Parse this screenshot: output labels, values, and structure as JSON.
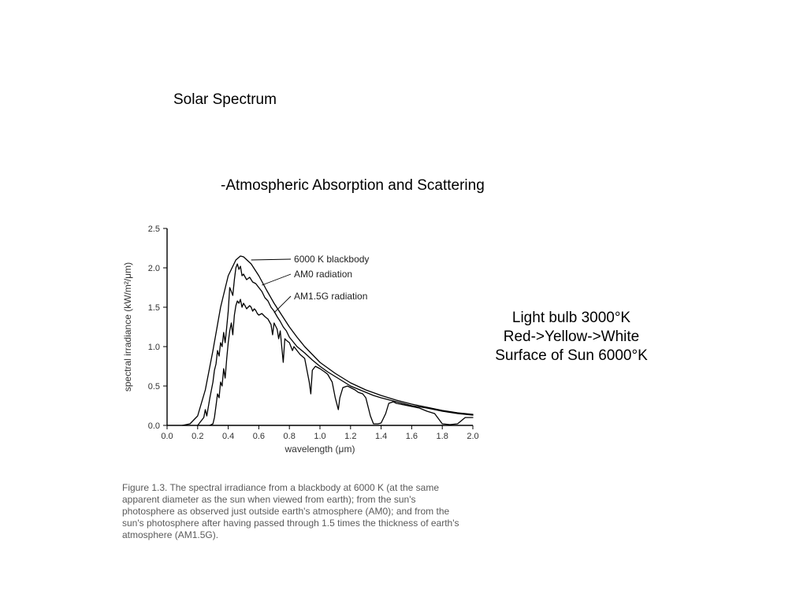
{
  "title": "Solar Spectrum",
  "subtitle": "-Atmospheric Absorption and Scattering",
  "side_note": {
    "line1": "Light bulb 3000°K",
    "line2": "Red->Yellow->White",
    "line3": "Surface of Sun 6000°K"
  },
  "caption": "Figure 1.3. The spectral irradiance from a blackbody at 6000 K (at the same apparent diameter as the sun when viewed from earth); from the sun's photosphere as observed just outside earth's atmosphere (AM0); and from the sun's photosphere after having passed through 1.5 times the thickness of earth's atmosphere (AM1.5G).",
  "chart": {
    "type": "line",
    "background_color": "#ffffff",
    "axis_color": "#000000",
    "line_color": "#000000",
    "line_width": 1.3,
    "xlim": [
      0.0,
      2.0
    ],
    "ylim": [
      0.0,
      2.5
    ],
    "xticks": [
      0.0,
      0.2,
      0.4,
      0.6,
      0.8,
      1.0,
      1.2,
      1.4,
      1.6,
      1.8,
      2.0
    ],
    "yticks": [
      0.0,
      0.5,
      1.0,
      1.5,
      2.0,
      2.5
    ],
    "xlabel": "wavelength (μm)",
    "ylabel": "spectral irradiance (kW/m²/μm)",
    "label_fontsize": 12,
    "tick_fontsize": 11,
    "series": [
      {
        "name": "6000 K blackbody",
        "label": "6000 K blackbody",
        "label_xy": [
          0.83,
          2.07
        ],
        "leader_from": [
          0.55,
          2.1
        ],
        "color": "#000000",
        "points": [
          [
            0.1,
            0.0
          ],
          [
            0.15,
            0.02
          ],
          [
            0.2,
            0.12
          ],
          [
            0.25,
            0.45
          ],
          [
            0.3,
            0.95
          ],
          [
            0.35,
            1.5
          ],
          [
            0.4,
            1.9
          ],
          [
            0.45,
            2.1
          ],
          [
            0.48,
            2.15
          ],
          [
            0.5,
            2.14
          ],
          [
            0.55,
            2.05
          ],
          [
            0.6,
            1.9
          ],
          [
            0.65,
            1.72
          ],
          [
            0.7,
            1.55
          ],
          [
            0.75,
            1.4
          ],
          [
            0.8,
            1.25
          ],
          [
            0.85,
            1.12
          ],
          [
            0.9,
            1.0
          ],
          [
            0.95,
            0.9
          ],
          [
            1.0,
            0.8
          ],
          [
            1.1,
            0.66
          ],
          [
            1.2,
            0.54
          ],
          [
            1.3,
            0.45
          ],
          [
            1.4,
            0.38
          ],
          [
            1.5,
            0.32
          ],
          [
            1.6,
            0.27
          ],
          [
            1.7,
            0.23
          ],
          [
            1.8,
            0.19
          ],
          [
            1.9,
            0.16
          ],
          [
            2.0,
            0.14
          ]
        ]
      },
      {
        "name": "AM0 radiation",
        "label": "AM0 radiation",
        "label_xy": [
          0.83,
          1.88
        ],
        "leader_from": [
          0.62,
          1.78
        ],
        "color": "#000000",
        "points": [
          [
            0.2,
            0.0
          ],
          [
            0.22,
            0.05
          ],
          [
            0.24,
            0.1
          ],
          [
            0.25,
            0.2
          ],
          [
            0.26,
            0.12
          ],
          [
            0.28,
            0.35
          ],
          [
            0.3,
            0.55
          ],
          [
            0.31,
            0.7
          ],
          [
            0.32,
            0.78
          ],
          [
            0.33,
            0.95
          ],
          [
            0.34,
            0.88
          ],
          [
            0.35,
            1.05
          ],
          [
            0.36,
            1.0
          ],
          [
            0.37,
            1.18
          ],
          [
            0.38,
            1.05
          ],
          [
            0.39,
            1.25
          ],
          [
            0.4,
            1.45
          ],
          [
            0.41,
            1.75
          ],
          [
            0.42,
            1.7
          ],
          [
            0.43,
            1.65
          ],
          [
            0.44,
            1.85
          ],
          [
            0.45,
            2.0
          ],
          [
            0.46,
            2.05
          ],
          [
            0.47,
            1.98
          ],
          [
            0.48,
            2.02
          ],
          [
            0.49,
            1.9
          ],
          [
            0.5,
            1.92
          ],
          [
            0.52,
            1.85
          ],
          [
            0.54,
            1.88
          ],
          [
            0.56,
            1.82
          ],
          [
            0.58,
            1.8
          ],
          [
            0.6,
            1.75
          ],
          [
            0.62,
            1.7
          ],
          [
            0.64,
            1.62
          ],
          [
            0.66,
            1.58
          ],
          [
            0.68,
            1.5
          ],
          [
            0.7,
            1.45
          ],
          [
            0.72,
            1.38
          ],
          [
            0.74,
            1.32
          ],
          [
            0.76,
            1.25
          ],
          [
            0.78,
            1.2
          ],
          [
            0.8,
            1.12
          ],
          [
            0.85,
            1.0
          ],
          [
            0.9,
            0.92
          ],
          [
            0.95,
            0.83
          ],
          [
            1.0,
            0.75
          ],
          [
            1.05,
            0.68
          ],
          [
            1.1,
            0.62
          ],
          [
            1.15,
            0.56
          ],
          [
            1.2,
            0.5
          ],
          [
            1.25,
            0.46
          ],
          [
            1.3,
            0.42
          ],
          [
            1.35,
            0.38
          ],
          [
            1.4,
            0.35
          ],
          [
            1.5,
            0.3
          ],
          [
            1.6,
            0.25
          ],
          [
            1.7,
            0.22
          ],
          [
            1.8,
            0.18
          ],
          [
            1.9,
            0.15
          ],
          [
            2.0,
            0.13
          ]
        ]
      },
      {
        "name": "AM1.5G radiation",
        "label": "AM1.5G radiation",
        "label_xy": [
          0.83,
          1.6
        ],
        "leader_from": [
          0.7,
          1.43
        ],
        "color": "#000000",
        "points": [
          [
            0.28,
            0.0
          ],
          [
            0.3,
            0.02
          ],
          [
            0.31,
            0.1
          ],
          [
            0.32,
            0.25
          ],
          [
            0.33,
            0.4
          ],
          [
            0.34,
            0.35
          ],
          [
            0.35,
            0.55
          ],
          [
            0.36,
            0.5
          ],
          [
            0.37,
            0.72
          ],
          [
            0.38,
            0.6
          ],
          [
            0.39,
            0.85
          ],
          [
            0.4,
            1.05
          ],
          [
            0.41,
            1.2
          ],
          [
            0.42,
            1.3
          ],
          [
            0.43,
            1.15
          ],
          [
            0.44,
            1.4
          ],
          [
            0.45,
            1.52
          ],
          [
            0.46,
            1.58
          ],
          [
            0.47,
            1.55
          ],
          [
            0.48,
            1.6
          ],
          [
            0.49,
            1.5
          ],
          [
            0.5,
            1.55
          ],
          [
            0.51,
            1.52
          ],
          [
            0.52,
            1.48
          ],
          [
            0.53,
            1.5
          ],
          [
            0.54,
            1.52
          ],
          [
            0.55,
            1.5
          ],
          [
            0.56,
            1.45
          ],
          [
            0.57,
            1.48
          ],
          [
            0.58,
            1.46
          ],
          [
            0.59,
            1.42
          ],
          [
            0.6,
            1.4
          ],
          [
            0.62,
            1.42
          ],
          [
            0.64,
            1.38
          ],
          [
            0.66,
            1.35
          ],
          [
            0.68,
            1.28
          ],
          [
            0.69,
            1.15
          ],
          [
            0.7,
            1.3
          ],
          [
            0.72,
            1.22
          ],
          [
            0.73,
            1.1
          ],
          [
            0.74,
            1.2
          ],
          [
            0.76,
            0.8
          ],
          [
            0.77,
            1.1
          ],
          [
            0.78,
            1.08
          ],
          [
            0.8,
            1.05
          ],
          [
            0.82,
            0.95
          ],
          [
            0.83,
            1.0
          ],
          [
            0.85,
            0.95
          ],
          [
            0.87,
            0.9
          ],
          [
            0.9,
            0.85
          ],
          [
            0.93,
            0.55
          ],
          [
            0.94,
            0.4
          ],
          [
            0.95,
            0.7
          ],
          [
            0.97,
            0.75
          ],
          [
            1.0,
            0.72
          ],
          [
            1.03,
            0.68
          ],
          [
            1.05,
            0.65
          ],
          [
            1.08,
            0.55
          ],
          [
            1.1,
            0.35
          ],
          [
            1.12,
            0.2
          ],
          [
            1.13,
            0.35
          ],
          [
            1.15,
            0.48
          ],
          [
            1.18,
            0.5
          ],
          [
            1.2,
            0.48
          ],
          [
            1.23,
            0.45
          ],
          [
            1.25,
            0.42
          ],
          [
            1.28,
            0.4
          ],
          [
            1.3,
            0.35
          ],
          [
            1.33,
            0.12
          ],
          [
            1.35,
            0.02
          ],
          [
            1.38,
            0.02
          ],
          [
            1.4,
            0.03
          ],
          [
            1.43,
            0.15
          ],
          [
            1.45,
            0.28
          ],
          [
            1.48,
            0.3
          ],
          [
            1.5,
            0.28
          ],
          [
            1.55,
            0.26
          ],
          [
            1.6,
            0.24
          ],
          [
            1.65,
            0.22
          ],
          [
            1.7,
            0.18
          ],
          [
            1.75,
            0.15
          ],
          [
            1.8,
            0.02
          ],
          [
            1.85,
            0.01
          ],
          [
            1.9,
            0.02
          ],
          [
            1.95,
            0.1
          ],
          [
            2.0,
            0.1
          ]
        ]
      }
    ]
  }
}
